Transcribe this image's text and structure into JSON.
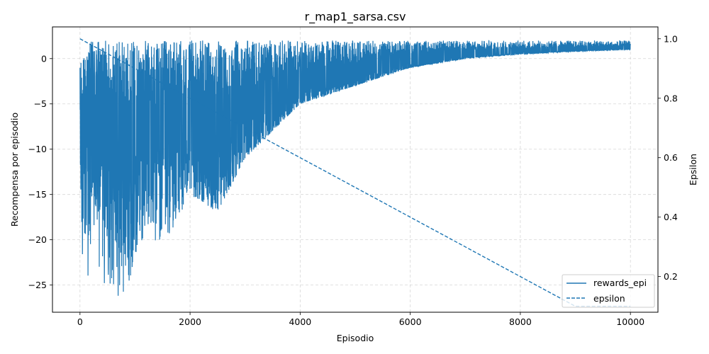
{
  "chart_data": {
    "type": "line",
    "title": "r_map1_sarsa.csv",
    "xlabel": "Episodio",
    "ylabel": "Recompensa por episodio",
    "y2label": "Epsilon",
    "xlim": [
      -500,
      10500
    ],
    "ylim": [
      -28,
      3.5
    ],
    "y2lim": [
      0.08,
      1.04
    ],
    "xticks": [
      0,
      2000,
      4000,
      6000,
      8000,
      10000
    ],
    "yticks": [
      -25,
      -20,
      -15,
      -10,
      -5,
      0
    ],
    "y2ticks": [
      0.2,
      0.4,
      0.6,
      0.8,
      1.0
    ],
    "xtick_labels": [
      "0",
      "2000",
      "4000",
      "6000",
      "8000",
      "10000"
    ],
    "ytick_labels": [
      "−25",
      "−20",
      "−15",
      "−10",
      "−5",
      "0"
    ],
    "y2tick_labels": [
      "0.2",
      "0.4",
      "0.6",
      "0.8",
      "1.0"
    ],
    "grid": true,
    "legend_position": "bottom-right",
    "color": "#1f77b4",
    "series": [
      {
        "name": "rewards_epi",
        "axis": "left",
        "style": "solid",
        "description_points": "noisy envelope: min reward rises from about -27 near episode 800 to about 1 near episode 10000; max reward about 2 throughout",
        "envelope_x": [
          0,
          200,
          400,
          600,
          800,
          1000,
          1200,
          1500,
          2000,
          2500,
          3000,
          3500,
          4000,
          5000,
          6000,
          7000,
          8000,
          9000,
          10000
        ],
        "envelope_min": [
          -26,
          -24,
          -25,
          -26,
          -27,
          -22,
          -19,
          -21,
          -15,
          -17,
          -11,
          -8,
          -5,
          -3,
          -1,
          0,
          0.5,
          0.8,
          1.0
        ],
        "envelope_max": [
          -0.5,
          2,
          2,
          2,
          2,
          2,
          2,
          2,
          2,
          2,
          2,
          2,
          2,
          2,
          2,
          2,
          2,
          2,
          2
        ]
      },
      {
        "name": "epsilon",
        "axis": "right",
        "style": "dashed",
        "x": [
          0,
          9000,
          10000
        ],
        "values": [
          1.0,
          0.1,
          0.1
        ]
      }
    ]
  }
}
